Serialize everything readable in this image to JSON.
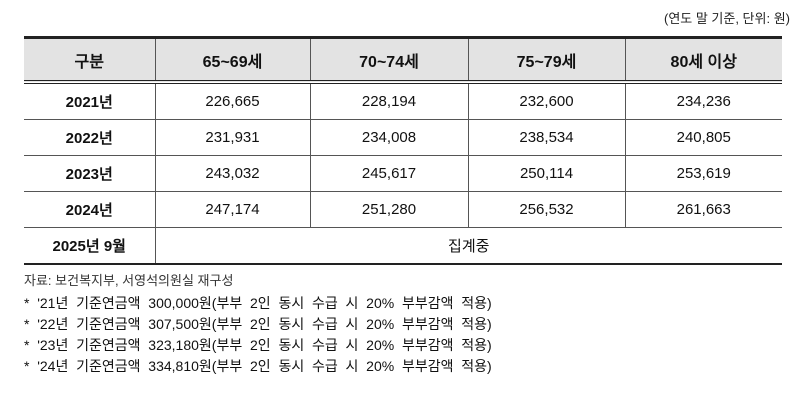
{
  "unit_note": "(연도 말 기준, 단위: 원)",
  "table": {
    "headers": [
      "구분",
      "65~69세",
      "70~74세",
      "75~79세",
      "80세  이상"
    ],
    "rows": [
      {
        "label": "2021년",
        "values": [
          "226,665",
          "228,194",
          "232,600",
          "234,236"
        ]
      },
      {
        "label": "2022년",
        "values": [
          "231,931",
          "234,008",
          "238,534",
          "240,805"
        ]
      },
      {
        "label": "2023년",
        "values": [
          "243,032",
          "245,617",
          "250,114",
          "253,619"
        ]
      },
      {
        "label": "2024년",
        "values": [
          "247,174",
          "251,280",
          "256,532",
          "261,663"
        ]
      }
    ],
    "last_row": {
      "label": "2025년  9월",
      "value": "집계중"
    }
  },
  "source": "자료: 보건복지부, 서영석의원실 재구성",
  "notes": [
    "*  '21년  기준연금액  300,000원(부부  2인  동시  수급  시  20%  부부감액  적용)",
    "*  '22년  기준연금액  307,500원(부부  2인  동시  수급  시  20%  부부감액  적용)",
    "*  '23년  기준연금액  323,180원(부부  2인  동시  수급  시  20%  부부감액  적용)",
    "*  '24년  기준연금액  334,810원(부부  2인  동시  수급  시  20%  부부감액  적용)"
  ]
}
